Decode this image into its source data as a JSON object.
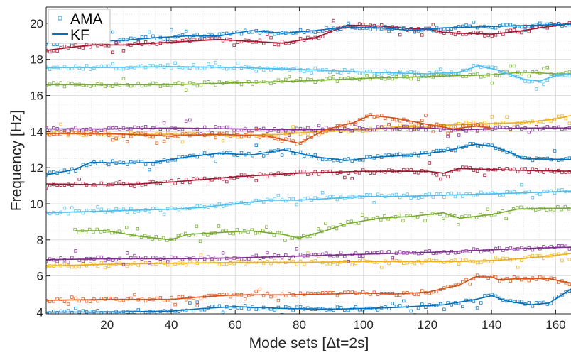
{
  "chart_data": {
    "type": "scatter",
    "xlabel": "Mode sets [Δt=2s]",
    "ylabel": "Frequency [Hz]",
    "xlim": [
      1,
      165
    ],
    "ylim": [
      3.9,
      20.9
    ],
    "xticks": [
      20,
      40,
      60,
      80,
      100,
      120,
      140,
      160
    ],
    "xtick_labels": [
      "20",
      "40",
      "60",
      "80",
      "100",
      "120",
      "140",
      "160"
    ],
    "yticks": [
      4,
      6,
      8,
      10,
      12,
      14,
      16,
      18,
      20
    ],
    "ytick_labels": [
      "4",
      "6",
      "8",
      "10",
      "12",
      "14",
      "16",
      "18",
      "20"
    ],
    "grid": true,
    "minor_grid": true,
    "legend": {
      "position": "top-left",
      "entries": [
        {
          "label": "AMA",
          "marker": "square",
          "color": "#5aa9d6"
        },
        {
          "label": "KF",
          "marker": "line",
          "color": "#0072bd"
        }
      ]
    },
    "series": [
      {
        "color": "#0072bd",
        "kf": [
          [
            1,
            4.0
          ],
          [
            20,
            4.0
          ],
          [
            40,
            4.05
          ],
          [
            50,
            4.2
          ],
          [
            60,
            4.3
          ],
          [
            75,
            4.2
          ],
          [
            90,
            4.15
          ],
          [
            100,
            4.2
          ],
          [
            110,
            4.25
          ],
          [
            125,
            4.4
          ],
          [
            135,
            4.7
          ],
          [
            140,
            4.9
          ],
          [
            145,
            4.6
          ],
          [
            152,
            4.4
          ],
          [
            158,
            4.5
          ],
          [
            165,
            5.3
          ]
        ]
      },
      {
        "color": "#d95319",
        "kf": [
          [
            1,
            4.65
          ],
          [
            20,
            4.7
          ],
          [
            40,
            4.7
          ],
          [
            50,
            4.85
          ],
          [
            60,
            4.95
          ],
          [
            75,
            4.95
          ],
          [
            90,
            5.0
          ],
          [
            100,
            5.05
          ],
          [
            110,
            5.0
          ],
          [
            120,
            5.1
          ],
          [
            130,
            5.5
          ],
          [
            135,
            5.95
          ],
          [
            140,
            5.95
          ],
          [
            142,
            5.8
          ],
          [
            150,
            5.85
          ],
          [
            158,
            5.85
          ],
          [
            162,
            5.7
          ],
          [
            165,
            5.6
          ]
        ]
      },
      {
        "color": "#edb120",
        "kf": [
          [
            1,
            6.55
          ],
          [
            20,
            6.65
          ],
          [
            40,
            6.7
          ],
          [
            60,
            6.75
          ],
          [
            80,
            6.75
          ],
          [
            100,
            6.8
          ],
          [
            120,
            6.8
          ],
          [
            130,
            6.8
          ],
          [
            145,
            6.9
          ],
          [
            158,
            7.1
          ],
          [
            165,
            7.25
          ]
        ]
      },
      {
        "color": "#7e2f8e",
        "kf": [
          [
            1,
            6.9
          ],
          [
            20,
            6.95
          ],
          [
            40,
            6.95
          ],
          [
            60,
            7.0
          ],
          [
            80,
            7.1
          ],
          [
            100,
            7.2
          ],
          [
            120,
            7.3
          ],
          [
            140,
            7.45
          ],
          [
            155,
            7.55
          ],
          [
            165,
            7.6
          ]
        ]
      },
      {
        "color": "#77ac30",
        "kf": [
          [
            10,
            8.5
          ],
          [
            20,
            8.5
          ],
          [
            30,
            8.2
          ],
          [
            40,
            8.0
          ],
          [
            45,
            8.3
          ],
          [
            55,
            8.4
          ],
          [
            65,
            8.5
          ],
          [
            75,
            8.3
          ],
          [
            80,
            8.1
          ],
          [
            88,
            8.5
          ],
          [
            95,
            8.9
          ],
          [
            105,
            9.2
          ],
          [
            115,
            9.3
          ],
          [
            125,
            9.5
          ],
          [
            130,
            9.2
          ],
          [
            140,
            9.4
          ],
          [
            148,
            9.7
          ],
          [
            155,
            9.75
          ],
          [
            165,
            9.75
          ]
        ]
      },
      {
        "color": "#4dbeee",
        "kf": [
          [
            1,
            9.5
          ],
          [
            20,
            9.6
          ],
          [
            40,
            9.7
          ],
          [
            50,
            9.8
          ],
          [
            60,
            10.0
          ],
          [
            70,
            10.2
          ],
          [
            80,
            10.2
          ],
          [
            90,
            10.3
          ],
          [
            100,
            10.4
          ],
          [
            110,
            10.4
          ],
          [
            120,
            10.45
          ],
          [
            130,
            10.5
          ],
          [
            140,
            10.55
          ],
          [
            150,
            10.6
          ],
          [
            165,
            10.7
          ]
        ]
      },
      {
        "color": "#a2142f",
        "kf": [
          [
            1,
            11.1
          ],
          [
            20,
            11.05
          ],
          [
            30,
            11.1
          ],
          [
            40,
            11.2
          ],
          [
            50,
            11.35
          ],
          [
            60,
            11.5
          ],
          [
            70,
            11.6
          ],
          [
            80,
            11.7
          ],
          [
            90,
            11.75
          ],
          [
            100,
            11.8
          ],
          [
            110,
            11.8
          ],
          [
            120,
            11.8
          ],
          [
            125,
            11.7
          ],
          [
            130,
            11.95
          ],
          [
            140,
            11.9
          ],
          [
            150,
            11.85
          ],
          [
            165,
            11.8
          ]
        ]
      },
      {
        "color": "#0072bd",
        "kf": [
          [
            1,
            11.6
          ],
          [
            10,
            11.9
          ],
          [
            15,
            12.3
          ],
          [
            25,
            12.25
          ],
          [
            35,
            12.3
          ],
          [
            45,
            12.6
          ],
          [
            55,
            12.8
          ],
          [
            65,
            12.7
          ],
          [
            75,
            13.0
          ],
          [
            85,
            12.6
          ],
          [
            95,
            12.4
          ],
          [
            105,
            12.6
          ],
          [
            115,
            12.7
          ],
          [
            125,
            12.9
          ],
          [
            135,
            13.3
          ],
          [
            140,
            13.2
          ],
          [
            145,
            12.9
          ],
          [
            150,
            12.5
          ],
          [
            165,
            12.45
          ]
        ]
      },
      {
        "color": "#edb120",
        "kf": [
          [
            1,
            13.9
          ],
          [
            20,
            13.85
          ],
          [
            40,
            13.85
          ],
          [
            60,
            13.8
          ],
          [
            75,
            13.85
          ],
          [
            85,
            14.0
          ],
          [
            100,
            14.1
          ],
          [
            110,
            14.25
          ],
          [
            120,
            14.3
          ],
          [
            130,
            14.4
          ],
          [
            140,
            14.45
          ],
          [
            150,
            14.5
          ],
          [
            160,
            14.7
          ],
          [
            165,
            14.9
          ]
        ]
      },
      {
        "color": "#7e2f8e",
        "kf": [
          [
            1,
            14.15
          ],
          [
            20,
            14.15
          ],
          [
            40,
            14.2
          ],
          [
            60,
            14.15
          ],
          [
            80,
            14.1
          ],
          [
            100,
            14.15
          ],
          [
            120,
            14.2
          ],
          [
            130,
            14.1
          ],
          [
            140,
            14.15
          ],
          [
            150,
            14.2
          ],
          [
            165,
            14.2
          ]
        ]
      },
      {
        "color": "#d95319",
        "kf": [
          [
            1,
            13.9
          ],
          [
            20,
            13.9
          ],
          [
            40,
            13.75
          ],
          [
            55,
            13.85
          ],
          [
            70,
            13.75
          ],
          [
            80,
            13.35
          ],
          [
            88,
            14.1
          ],
          [
            97,
            14.5
          ],
          [
            102,
            14.9
          ],
          [
            110,
            14.75
          ],
          [
            120,
            14.4
          ],
          [
            128,
            14.15
          ],
          [
            135,
            14.3
          ],
          [
            140,
            14.2
          ]
        ]
      },
      {
        "color": "#77ac30",
        "kf": [
          [
            1,
            16.6
          ],
          [
            20,
            16.6
          ],
          [
            40,
            16.6
          ],
          [
            60,
            16.7
          ],
          [
            80,
            16.8
          ],
          [
            100,
            16.95
          ],
          [
            120,
            17.05
          ],
          [
            140,
            17.15
          ],
          [
            150,
            17.3
          ],
          [
            160,
            17.2
          ],
          [
            165,
            17.2
          ]
        ]
      },
      {
        "color": "#4dbeee",
        "kf": [
          [
            1,
            17.55
          ],
          [
            20,
            17.55
          ],
          [
            40,
            17.6
          ],
          [
            60,
            17.55
          ],
          [
            80,
            17.45
          ],
          [
            100,
            17.3
          ],
          [
            120,
            17.2
          ],
          [
            130,
            17.3
          ],
          [
            136,
            17.65
          ],
          [
            142,
            17.4
          ],
          [
            150,
            16.9
          ],
          [
            155,
            16.8
          ],
          [
            160,
            17.1
          ],
          [
            165,
            17.2
          ]
        ]
      },
      {
        "color": "#a2142f",
        "kf": [
          [
            1,
            18.5
          ],
          [
            15,
            18.8
          ],
          [
            25,
            18.8
          ],
          [
            35,
            18.9
          ],
          [
            45,
            19.0
          ],
          [
            55,
            19.1
          ],
          [
            65,
            19.0
          ],
          [
            75,
            18.9
          ],
          [
            85,
            19.2
          ],
          [
            95,
            19.9
          ],
          [
            105,
            19.85
          ],
          [
            115,
            19.7
          ],
          [
            120,
            19.7
          ],
          [
            125,
            19.5
          ],
          [
            130,
            19.45
          ],
          [
            140,
            19.4
          ],
          [
            148,
            19.55
          ],
          [
            155,
            19.75
          ],
          [
            165,
            20.0
          ]
        ]
      },
      {
        "color": "#0072bd",
        "kf": [
          [
            1,
            18.9
          ],
          [
            15,
            19.0
          ],
          [
            25,
            19.05
          ],
          [
            35,
            19.2
          ],
          [
            45,
            19.3
          ],
          [
            55,
            19.3
          ],
          [
            65,
            19.6
          ],
          [
            75,
            19.45
          ],
          [
            85,
            19.6
          ],
          [
            95,
            19.8
          ],
          [
            105,
            19.75
          ],
          [
            115,
            19.6
          ],
          [
            125,
            19.75
          ],
          [
            135,
            19.8
          ],
          [
            145,
            19.85
          ],
          [
            155,
            19.9
          ],
          [
            165,
            19.95
          ]
        ]
      }
    ]
  }
}
